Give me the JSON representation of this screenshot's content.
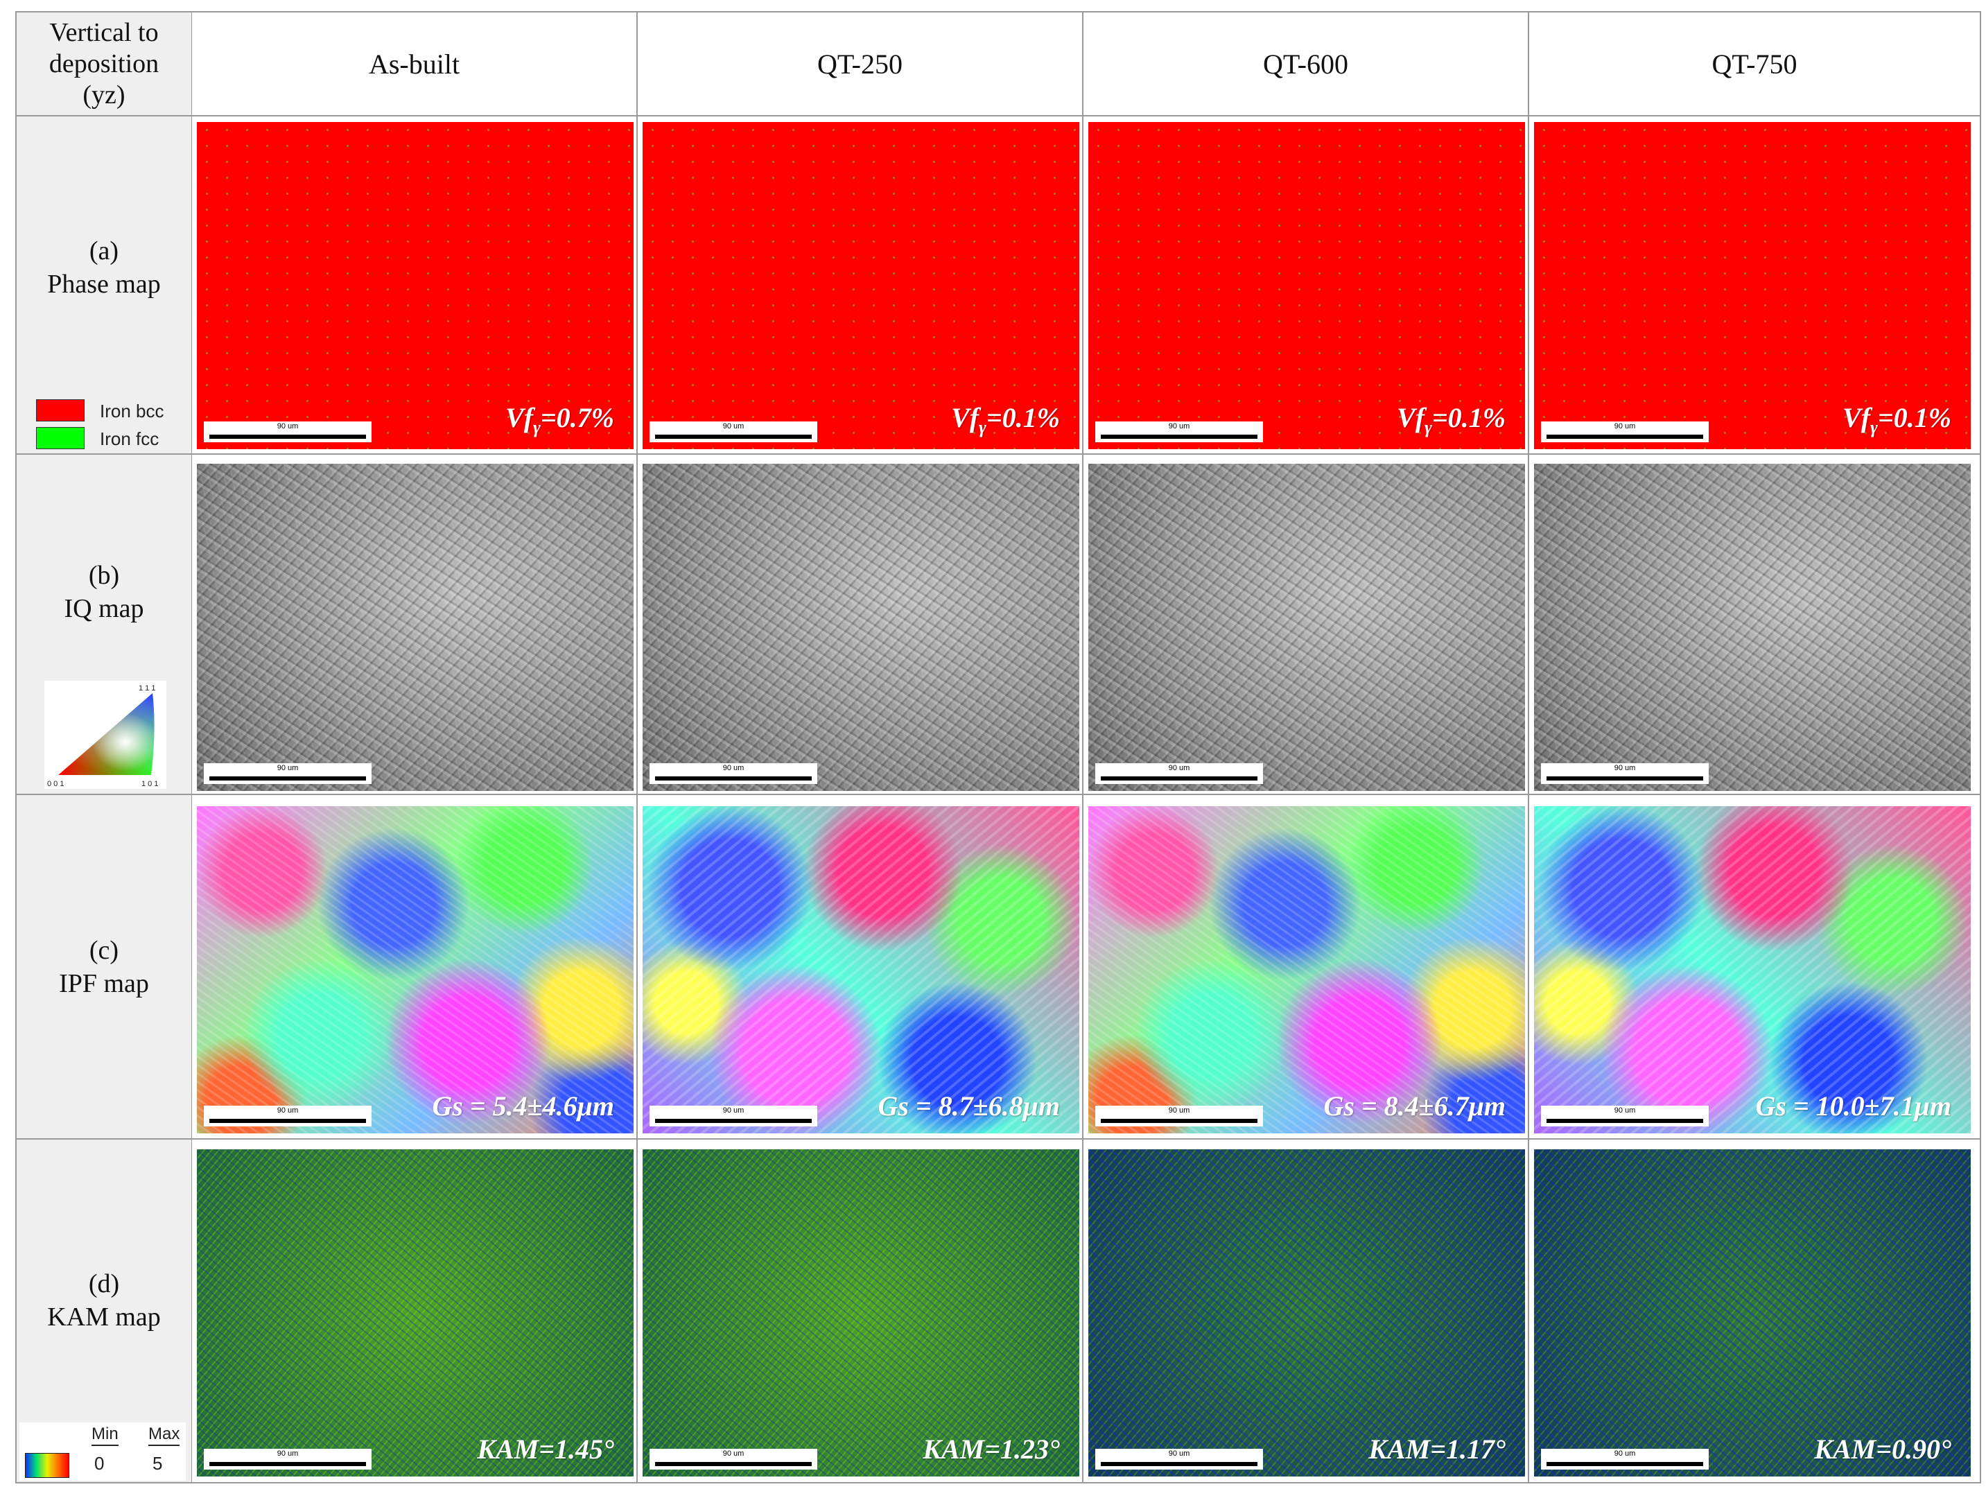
{
  "header": {
    "corner_label_lines": [
      "Vertical to",
      "deposition",
      "(yz)"
    ],
    "columns": [
      "As-built",
      "QT-250",
      "QT-600",
      "QT-750"
    ]
  },
  "rows": [
    {
      "letter": "(a)",
      "name": "Phase map",
      "annotations": [
        "=0.7%",
        "=0.1%",
        "=0.1%",
        "=0.1%"
      ]
    },
    {
      "letter": "(b)",
      "name": "IQ map",
      "annotations": []
    },
    {
      "letter": "(c)",
      "name": "IPF map",
      "annotations": [
        "Gs = 5.4±4.6μm",
        "Gs = 8.7±6.8μm",
        "Gs = 8.4±6.7μm",
        "Gs = 10.0±7.1μm"
      ]
    },
    {
      "letter": "(d)",
      "name": "KAM map",
      "annotations": [
        "KAM=1.45°",
        "KAM=1.23°",
        "KAM=1.17°",
        "KAM=0.90°"
      ]
    }
  ],
  "phase_annotation": {
    "prefix": "Vf",
    "sub": "γ"
  },
  "scale_bar_label": "90 um",
  "phase_legend": [
    {
      "label": "Iron bcc",
      "color": "#ff0000"
    },
    {
      "label": "Iron fcc",
      "color": "#00ff00"
    }
  ],
  "ipf_legend": {
    "top": "1 1 1",
    "left": "0 0 1",
    "right": "1 0 1"
  },
  "kam_legend": {
    "min_label": "Min",
    "max_label": "Max",
    "min_value": "0",
    "max_value": "5"
  }
}
